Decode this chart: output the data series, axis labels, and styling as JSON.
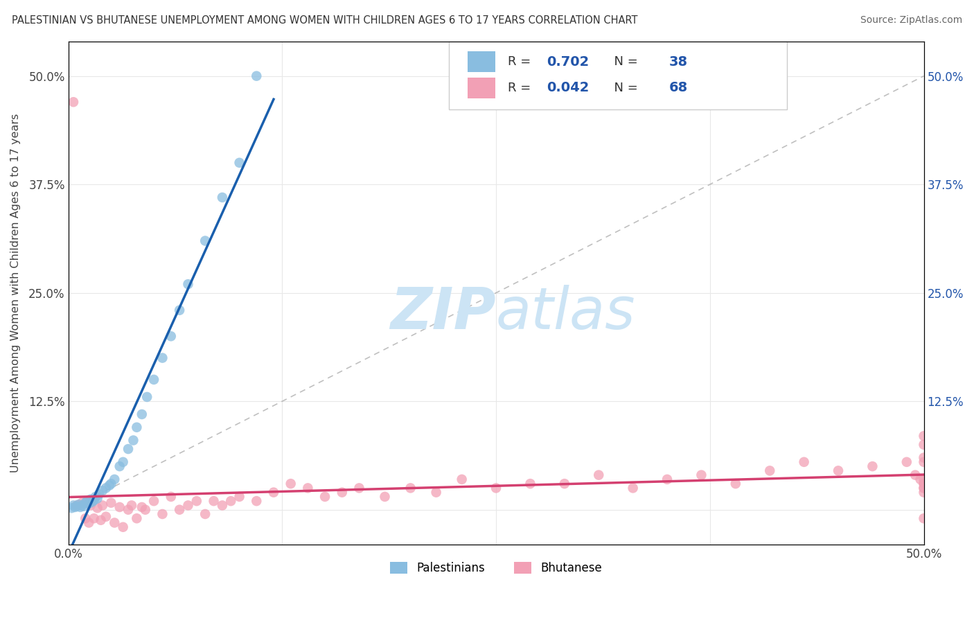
{
  "title": "PALESTINIAN VS BHUTANESE UNEMPLOYMENT AMONG WOMEN WITH CHILDREN AGES 6 TO 17 YEARS CORRELATION CHART",
  "source": "Source: ZipAtlas.com",
  "ylabel": "Unemployment Among Women with Children Ages 6 to 17 years",
  "xlim": [
    0.0,
    0.5
  ],
  "ylim": [
    -0.04,
    0.54
  ],
  "xticks": [
    0.0,
    0.125,
    0.25,
    0.375,
    0.5
  ],
  "xticklabels": [
    "0.0%",
    "",
    "",
    "",
    "50.0%"
  ],
  "yticks": [
    0.0,
    0.125,
    0.25,
    0.375,
    0.5
  ],
  "yticklabels_left": [
    "",
    "12.5%",
    "25.0%",
    "37.5%",
    "50.0%"
  ],
  "yticklabels_right": [
    "",
    "12.5%",
    "25.0%",
    "37.5%",
    "50.0%"
  ],
  "legend_R_pal": "0.702",
  "legend_N_pal": "38",
  "legend_R_bhu": "0.042",
  "legend_N_bhu": "68",
  "pal_color": "#89bde0",
  "bhu_color": "#f2a0b5",
  "pal_line_color": "#1a5fad",
  "bhu_line_color": "#d44070",
  "diag_line_color": "#b0b0b0",
  "watermark_color": "#cce4f5",
  "background_color": "#ffffff",
  "grid_color": "#e8e8e8",
  "pal_x": [
    0.002,
    0.003,
    0.004,
    0.005,
    0.006,
    0.007,
    0.008,
    0.009,
    0.01,
    0.011,
    0.012,
    0.013,
    0.014,
    0.015,
    0.016,
    0.017,
    0.018,
    0.02,
    0.022,
    0.024,
    0.025,
    0.027,
    0.03,
    0.032,
    0.035,
    0.038,
    0.04,
    0.043,
    0.046,
    0.05,
    0.055,
    0.06,
    0.065,
    0.07,
    0.08,
    0.09,
    0.1,
    0.11
  ],
  "pal_y": [
    0.002,
    0.005,
    0.003,
    0.004,
    0.006,
    0.003,
    0.005,
    0.004,
    0.008,
    0.01,
    0.007,
    0.012,
    0.009,
    0.011,
    0.015,
    0.013,
    0.018,
    0.022,
    0.025,
    0.028,
    0.03,
    0.035,
    0.05,
    0.055,
    0.07,
    0.08,
    0.095,
    0.11,
    0.13,
    0.15,
    0.175,
    0.2,
    0.23,
    0.26,
    0.31,
    0.36,
    0.4,
    0.5
  ],
  "bhu_x": [
    0.003,
    0.005,
    0.008,
    0.01,
    0.012,
    0.013,
    0.015,
    0.017,
    0.019,
    0.02,
    0.022,
    0.025,
    0.027,
    0.03,
    0.032,
    0.035,
    0.037,
    0.04,
    0.043,
    0.045,
    0.05,
    0.055,
    0.06,
    0.065,
    0.07,
    0.075,
    0.08,
    0.085,
    0.09,
    0.095,
    0.1,
    0.11,
    0.12,
    0.13,
    0.14,
    0.15,
    0.16,
    0.17,
    0.185,
    0.2,
    0.215,
    0.23,
    0.25,
    0.27,
    0.29,
    0.31,
    0.33,
    0.35,
    0.37,
    0.39,
    0.41,
    0.43,
    0.45,
    0.47,
    0.49,
    0.495,
    0.498,
    0.5,
    0.5,
    0.5,
    0.5,
    0.5,
    0.5,
    0.5,
    0.5,
    0.5,
    0.5,
    0.5
  ],
  "bhu_y": [
    0.47,
    0.005,
    0.008,
    -0.01,
    -0.015,
    0.005,
    -0.01,
    0.002,
    -0.012,
    0.005,
    -0.008,
    0.008,
    -0.015,
    0.003,
    -0.02,
    0.0,
    0.005,
    -0.01,
    0.003,
    0.0,
    0.01,
    -0.005,
    0.015,
    0.0,
    0.005,
    0.01,
    -0.005,
    0.01,
    0.005,
    0.01,
    0.015,
    0.01,
    0.02,
    0.03,
    0.025,
    0.015,
    0.02,
    0.025,
    0.015,
    0.025,
    0.02,
    0.035,
    0.025,
    0.03,
    0.03,
    0.04,
    0.025,
    0.035,
    0.04,
    0.03,
    0.045,
    0.055,
    0.045,
    0.05,
    0.055,
    0.04,
    0.035,
    0.06,
    0.055,
    0.075,
    0.035,
    0.025,
    0.085,
    -0.01,
    0.03,
    0.025,
    0.02,
    0.03
  ]
}
